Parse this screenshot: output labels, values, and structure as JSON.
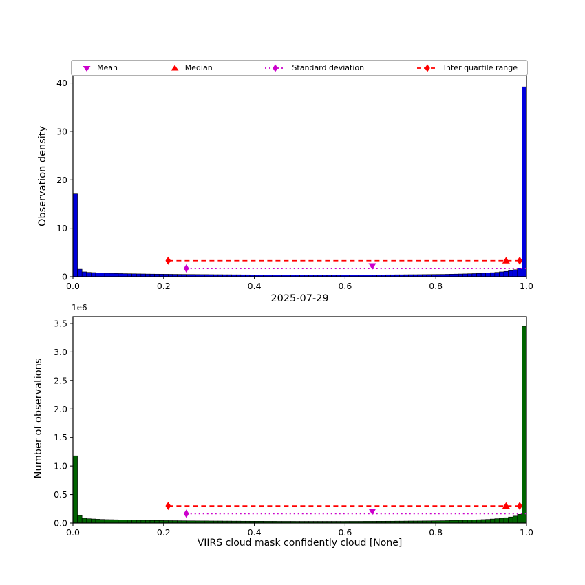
{
  "figure": {
    "background": "#ffffff"
  },
  "legend": {
    "items": [
      {
        "label": "Mean",
        "marker": "triangle-down",
        "color_key": "mean"
      },
      {
        "label": "Median",
        "marker": "triangle-up",
        "color_key": "median"
      },
      {
        "label": "Standard deviation",
        "marker": "diamond-dotted-line",
        "color_key": "std"
      },
      {
        "label": "Inter quartile range",
        "marker": "diamond-dashed-line",
        "color_key": "iqr"
      }
    ]
  },
  "colors": {
    "mean": "#cc00cc",
    "median": "#ff0000",
    "std": "#cc00cc",
    "iqr": "#ff0000",
    "top_bar": "#0000dd",
    "bottom_bar": "#006400",
    "edge": "#000000"
  },
  "stats": {
    "mean": 0.66,
    "median": 0.955,
    "q1": 0.21,
    "q3": 0.985,
    "std_lo": 0.25,
    "std_hi": 1.0
  },
  "chart_data": [
    {
      "type": "bar",
      "panel": "top",
      "ylabel": "Observation density",
      "bin_start": 0.0,
      "bin_width": 0.01,
      "xlim": [
        0.0,
        1.0
      ],
      "ylim": [
        0,
        41.5
      ],
      "ytickvalues": [
        0,
        10,
        20,
        30,
        40
      ],
      "yticklabels": [
        "0",
        "10",
        "20",
        "30",
        "40"
      ],
      "xtickvalues": [
        0.0,
        0.2,
        0.4,
        0.6,
        0.8,
        1.0
      ],
      "xticklabels": [
        "0.0",
        "0.2",
        "0.4",
        "0.6",
        "0.8",
        "1.0"
      ],
      "bar_color_key": "top_bar",
      "overlay": {
        "iqr_y": 3.3,
        "std_y": 1.7,
        "mean_y": 2.2
      },
      "values": [
        17.1,
        1.55,
        1.0,
        0.9,
        0.85,
        0.8,
        0.75,
        0.72,
        0.7,
        0.68,
        0.65,
        0.63,
        0.61,
        0.6,
        0.58,
        0.57,
        0.55,
        0.54,
        0.53,
        0.52,
        0.51,
        0.5,
        0.49,
        0.48,
        0.47,
        0.46,
        0.46,
        0.45,
        0.44,
        0.44,
        0.43,
        0.42,
        0.42,
        0.41,
        0.41,
        0.4,
        0.4,
        0.39,
        0.39,
        0.38,
        0.38,
        0.38,
        0.37,
        0.37,
        0.37,
        0.36,
        0.36,
        0.36,
        0.36,
        0.35,
        0.35,
        0.35,
        0.35,
        0.35,
        0.35,
        0.35,
        0.35,
        0.35,
        0.35,
        0.35,
        0.36,
        0.36,
        0.36,
        0.36,
        0.37,
        0.37,
        0.37,
        0.38,
        0.38,
        0.39,
        0.39,
        0.4,
        0.4,
        0.41,
        0.42,
        0.42,
        0.43,
        0.44,
        0.45,
        0.46,
        0.47,
        0.48,
        0.5,
        0.52,
        0.54,
        0.56,
        0.58,
        0.61,
        0.64,
        0.68,
        0.72,
        0.77,
        0.83,
        0.9,
        1.0,
        1.1,
        1.25,
        1.45,
        1.8,
        39.2
      ]
    },
    {
      "type": "bar",
      "panel": "bottom",
      "title": "2025-07-29",
      "ylabel": "Number of observations",
      "xlabel": "VIIRS cloud mask confidently cloud [None]",
      "offset_text": "1e6",
      "bin_start": 0.0,
      "bin_width": 0.01,
      "xlim": [
        0.0,
        1.0
      ],
      "ylim": [
        0,
        3620000
      ],
      "ytickvalues": [
        0,
        500000,
        1000000,
        1500000,
        2000000,
        2500000,
        3000000,
        3500000
      ],
      "yticklabels": [
        "0.0",
        "0.5",
        "1.0",
        "1.5",
        "2.0",
        "2.5",
        "3.0",
        "3.5"
      ],
      "xtickvalues": [
        0.0,
        0.2,
        0.4,
        0.6,
        0.8,
        1.0
      ],
      "xticklabels": [
        "0.0",
        "0.2",
        "0.4",
        "0.6",
        "0.8",
        "1.0"
      ],
      "bar_color_key": "bottom_bar",
      "overlay": {
        "iqr_y": 300000,
        "std_y": 165000,
        "mean_y": 205000
      },
      "values": [
        1180000,
        132000,
        85000,
        76000,
        72000,
        68000,
        64000,
        61000,
        60000,
        58000,
        55000,
        54000,
        52000,
        51000,
        49000,
        48000,
        47000,
        46000,
        45000,
        44000,
        43000,
        42500,
        42000,
        41000,
        40000,
        39000,
        39000,
        38000,
        37500,
        37500,
        36500,
        36000,
        36000,
        35000,
        35000,
        34000,
        34000,
        33000,
        33000,
        32500,
        32500,
        32500,
        31500,
        31500,
        31500,
        30500,
        30500,
        30500,
        30500,
        30000,
        30000,
        30000,
        30000,
        30000,
        30000,
        30000,
        30000,
        30000,
        30000,
        30000,
        30500,
        30500,
        30500,
        30500,
        31500,
        31500,
        31500,
        32500,
        32500,
        33000,
        33000,
        34000,
        34000,
        35000,
        36000,
        36000,
        36500,
        37500,
        38000,
        39000,
        40000,
        41000,
        42500,
        44000,
        46000,
        48000,
        49000,
        52000,
        54000,
        58000,
        61000,
        65000,
        71000,
        77000,
        85000,
        94000,
        106000,
        123000,
        153000,
        3450000
      ]
    }
  ]
}
